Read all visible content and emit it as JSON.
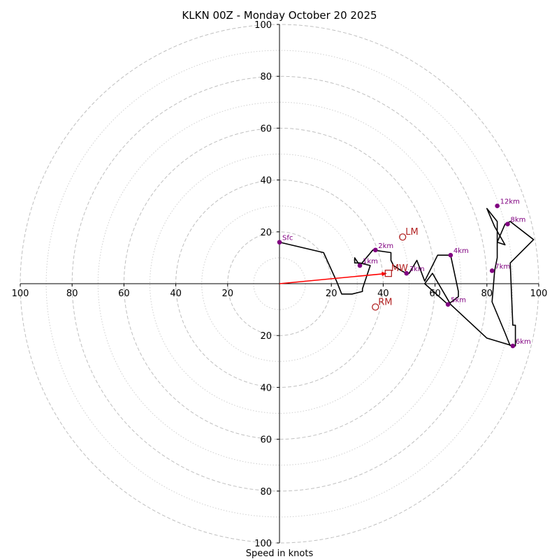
{
  "chart_data": {
    "type": "hodograph",
    "title": "KLKN 00Z - Monday October 20 2025",
    "xlabel": "Speed in knots",
    "range": [
      -100,
      100
    ],
    "ring_values": [
      10,
      20,
      30,
      40,
      50,
      60,
      70,
      80,
      90,
      100
    ],
    "x_ticks": [
      {
        "v": -100,
        "t": "100"
      },
      {
        "v": -80,
        "t": "80"
      },
      {
        "v": -60,
        "t": "60"
      },
      {
        "v": -40,
        "t": "40"
      },
      {
        "v": -20,
        "t": "20"
      },
      {
        "v": 20,
        "t": "20"
      },
      {
        "v": 40,
        "t": "40"
      },
      {
        "v": 60,
        "t": "60"
      },
      {
        "v": 80,
        "t": "80"
      },
      {
        "v": 100,
        "t": "100"
      }
    ],
    "y_ticks": [
      {
        "v": 100,
        "t": "100"
      },
      {
        "v": 80,
        "t": "80"
      },
      {
        "v": 60,
        "t": "60"
      },
      {
        "v": 40,
        "t": "40"
      },
      {
        "v": 20,
        "t": "20"
      },
      {
        "v": -20,
        "t": "20"
      },
      {
        "v": -40,
        "t": "40"
      },
      {
        "v": -60,
        "t": "60"
      },
      {
        "v": -80,
        "t": "80"
      },
      {
        "v": -100,
        "t": "100"
      }
    ],
    "trace": [
      [
        0,
        16
      ],
      [
        17,
        12
      ],
      [
        22,
        1
      ],
      [
        24,
        -4
      ],
      [
        28,
        -4
      ],
      [
        32,
        -3
      ],
      [
        32,
        -2
      ],
      [
        35,
        7
      ],
      [
        31,
        8
      ],
      [
        29,
        8
      ],
      [
        29,
        10
      ],
      [
        31,
        7
      ],
      [
        36,
        13
      ],
      [
        43,
        12
      ],
      [
        43,
        9
      ],
      [
        44,
        7
      ],
      [
        47,
        5
      ],
      [
        49,
        4
      ],
      [
        50,
        4
      ],
      [
        53,
        9
      ],
      [
        56,
        1
      ],
      [
        61,
        11
      ],
      [
        66,
        11
      ],
      [
        69,
        -3
      ],
      [
        69,
        -5
      ],
      [
        65,
        -8
      ],
      [
        56,
        0
      ],
      [
        59,
        4
      ],
      [
        66,
        -8
      ],
      [
        80,
        -21
      ],
      [
        90,
        -24
      ],
      [
        91,
        -24
      ],
      [
        91,
        -16
      ],
      [
        90,
        -16
      ],
      [
        89,
        8
      ],
      [
        98,
        17
      ],
      [
        89,
        24
      ],
      [
        87,
        23
      ],
      [
        84,
        16
      ],
      [
        87,
        15
      ],
      [
        83,
        22
      ],
      [
        80,
        29
      ],
      [
        84,
        24
      ],
      [
        84,
        10
      ],
      [
        83,
        5
      ],
      [
        82,
        -7
      ],
      [
        87,
        -19
      ],
      [
        89,
        -24
      ]
    ],
    "height_markers": [
      {
        "label": "Sfc",
        "u": 0,
        "v": 16
      },
      {
        "label": "1km",
        "u": 31,
        "v": 7
      },
      {
        "label": "2km",
        "u": 37,
        "v": 13
      },
      {
        "label": "3km",
        "u": 49,
        "v": 4
      },
      {
        "label": "4km",
        "u": 66,
        "v": 11
      },
      {
        "label": "5km",
        "u": 65,
        "v": -8
      },
      {
        "label": "6km",
        "u": 90,
        "v": -24
      },
      {
        "label": "7km",
        "u": 82,
        "v": 5
      },
      {
        "label": "8km",
        "u": 88,
        "v": 23
      },
      {
        "label": "12km",
        "u": 84,
        "v": 30
      }
    ],
    "motion_markers": [
      {
        "label": "LM",
        "u": 47.5,
        "v": 18,
        "shape": "circle"
      },
      {
        "label": "RM",
        "u": 37,
        "v": -9,
        "shape": "circle"
      },
      {
        "label": "MW",
        "u": 42,
        "v": 4,
        "shape": "square"
      }
    ],
    "shear_vector": {
      "from": [
        0,
        0
      ],
      "to": [
        42,
        4
      ]
    },
    "colors": {
      "trace": "#000000",
      "height_marker": "#800080",
      "motion": "#b22222",
      "shear_vector": "#ff0000",
      "ring_major": "#bfbfbf",
      "ring_minor": "#cfcfcf"
    },
    "grid": true
  }
}
